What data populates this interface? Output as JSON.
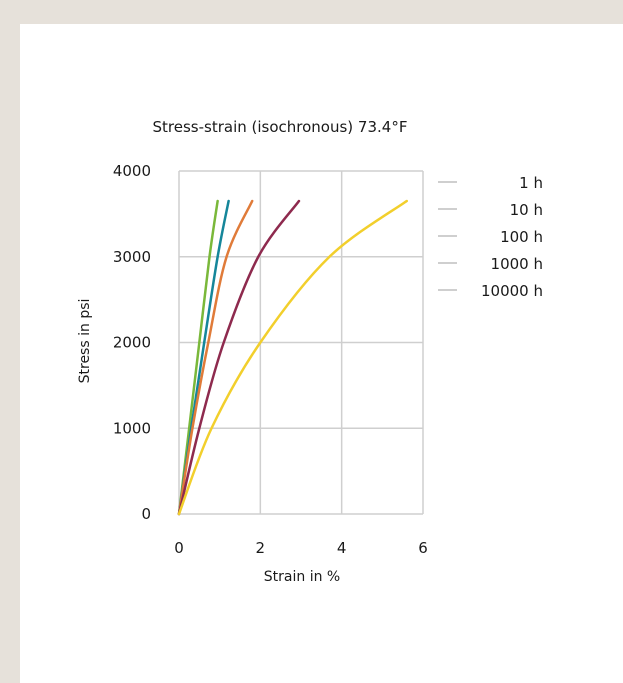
{
  "chart_data": {
    "type": "line",
    "title": "Stress-strain (isochronous) 73.4°F",
    "xlabel": "Strain in %",
    "ylabel": "Stress in psi",
    "xlim": [
      0,
      6
    ],
    "ylim": [
      0,
      4000
    ],
    "xticks": [
      "0",
      "2",
      "4",
      "6"
    ],
    "yticks": [
      "0",
      "1000",
      "2000",
      "3000",
      "4000"
    ],
    "grid": true,
    "legend_position": "right",
    "series": [
      {
        "name": "1 h",
        "color": "#7ab83a",
        "x": [
          0,
          0.25,
          0.5,
          0.75,
          0.95
        ],
        "y": [
          0,
          1000,
          2000,
          3000,
          3650
        ]
      },
      {
        "name": "10 h",
        "color": "#15869a",
        "x": [
          0,
          0.3,
          0.62,
          0.95,
          1.22
        ],
        "y": [
          0,
          1000,
          2000,
          3000,
          3650
        ]
      },
      {
        "name": "100 h",
        "color": "#e07b39",
        "x": [
          0,
          0.33,
          0.72,
          1.17,
          1.8
        ],
        "y": [
          0,
          1000,
          2000,
          3000,
          3650
        ]
      },
      {
        "name": "1000 h",
        "color": "#8e2a4e",
        "x": [
          0,
          0.5,
          1.1,
          1.95,
          2.95
        ],
        "y": [
          0,
          1000,
          2000,
          3000,
          3650
        ]
      },
      {
        "name": "10000 h",
        "color": "#f2cf2c",
        "x": [
          0,
          0.8,
          2.0,
          3.7,
          5.6
        ],
        "y": [
          0,
          1000,
          2000,
          3000,
          3650
        ]
      }
    ]
  }
}
